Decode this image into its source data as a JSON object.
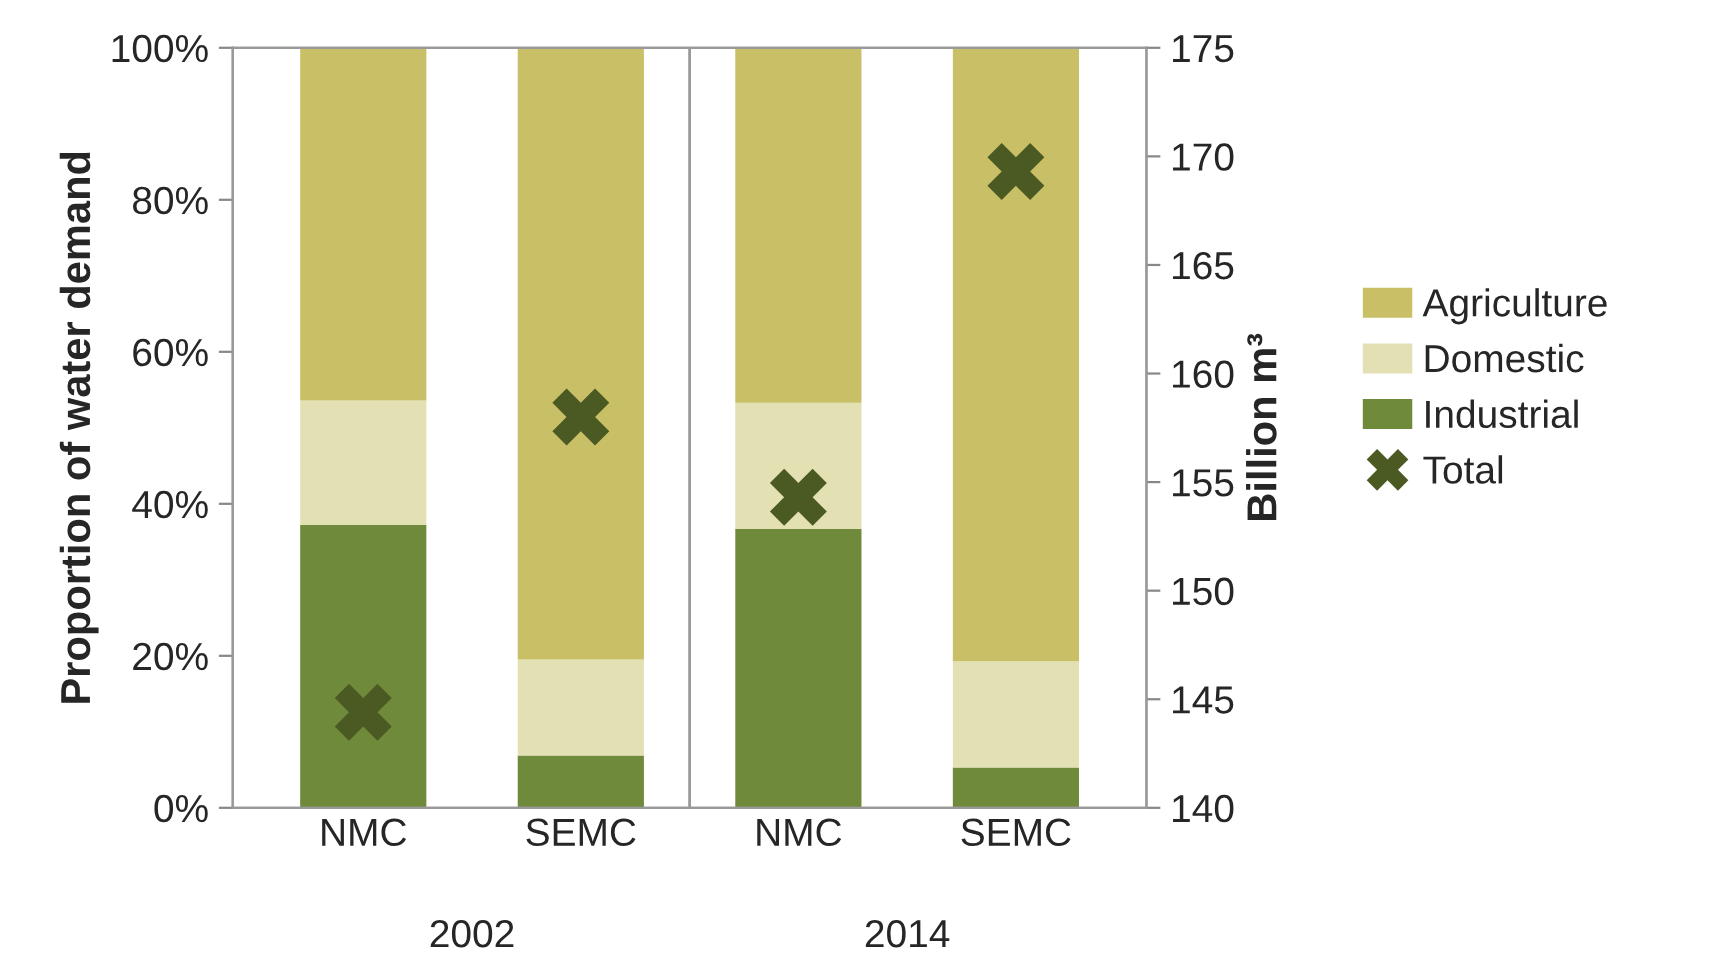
{
  "chart_data": {
    "type": "bar",
    "stacked": true,
    "categories": [
      "NMC",
      "SEMC",
      "NMC",
      "SEMC"
    ],
    "series": [
      {
        "name": "Industrial",
        "color": "#6f8a3a",
        "values": [
          37.2,
          6.9,
          36.7,
          5.3
        ]
      },
      {
        "name": "Domestic",
        "color": "#e3e0b4",
        "values": [
          16.4,
          12.6,
          16.6,
          14.0
        ]
      },
      {
        "name": "Agriculture",
        "color": "#c8bf66",
        "values": [
          46.4,
          80.5,
          46.7,
          80.7
        ]
      },
      {
        "name": "Total",
        "type": "scatter",
        "axis": "y2",
        "marker": "cross",
        "color": "#4a5a22",
        "values": [
          144.4,
          158.0,
          154.3,
          169.3
        ]
      }
    ],
    "ylabel": "Proportion of water demand",
    "y2label": "Billion m³",
    "ylim": [
      0,
      100
    ],
    "yticks": [
      {
        "value": 0,
        "label": "0%"
      },
      {
        "value": 20,
        "label": "20%"
      },
      {
        "value": 40,
        "label": "40%"
      },
      {
        "value": 60,
        "label": "60%"
      },
      {
        "value": 80,
        "label": "80%"
      },
      {
        "value": 100,
        "label": "100%"
      }
    ],
    "y2lim": [
      140,
      175
    ],
    "y2ticks": [
      140,
      145,
      150,
      155,
      160,
      165,
      170,
      175
    ],
    "annotations": [
      "2002",
      "2014"
    ],
    "grid": false,
    "legend": "right"
  }
}
